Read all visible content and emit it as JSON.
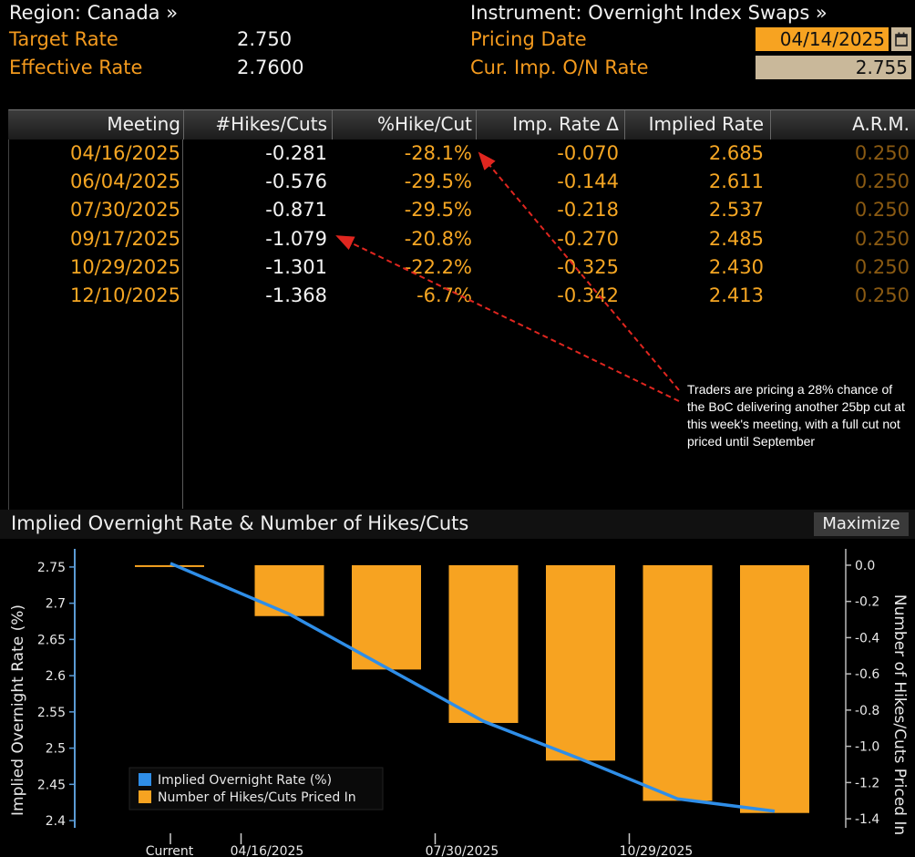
{
  "header": {
    "region_label": "Region: Canada »",
    "instrument_label": "Instrument: Overnight Index Swaps »",
    "target_rate_label": "Target Rate",
    "target_rate_value": "2.750",
    "effective_rate_label": "Effective Rate",
    "effective_rate_value": "2.7600",
    "pricing_date_label": "Pricing Date",
    "pricing_date_value": "04/14/2025",
    "calendar_icon": "calendar-icon",
    "cur_imp_label": "Cur. Imp. O/N Rate",
    "cur_imp_value": "2.755"
  },
  "table": {
    "headers": [
      "Meeting",
      "#Hikes/Cuts",
      "%Hike/Cut",
      "Imp. Rate Δ",
      "Implied Rate",
      "A.R.M."
    ],
    "rows": [
      {
        "meeting": "04/16/2025",
        "hikes": "-0.281",
        "pct": "-28.1%",
        "delta": "-0.070",
        "implied": "2.685",
        "arm": "0.250"
      },
      {
        "meeting": "06/04/2025",
        "hikes": "-0.576",
        "pct": "-29.5%",
        "delta": "-0.144",
        "implied": "2.611",
        "arm": "0.250"
      },
      {
        "meeting": "07/30/2025",
        "hikes": "-0.871",
        "pct": "-29.5%",
        "delta": "-0.218",
        "implied": "2.537",
        "arm": "0.250"
      },
      {
        "meeting": "09/17/2025",
        "hikes": "-1.079",
        "pct": "-20.8%",
        "delta": "-0.270",
        "implied": "2.485",
        "arm": "0.250"
      },
      {
        "meeting": "10/29/2025",
        "hikes": "-1.301",
        "pct": "-22.2%",
        "delta": "-0.325",
        "implied": "2.430",
        "arm": "0.250"
      },
      {
        "meeting": "12/10/2025",
        "hikes": "-1.368",
        "pct": "-6.7%",
        "delta": "-0.342",
        "implied": "2.413",
        "arm": "0.250"
      }
    ]
  },
  "annotation": {
    "text": "Traders are pricing a 28% chance of the BoC delivering another 25bp cut at this week's meeting, with a full cut not priced until September",
    "arrow_color": "#e0261f"
  },
  "chart": {
    "title": "Implied Overnight Rate & Number of Hikes/Cuts",
    "maximize_label": "Maximize"
  },
  "chart_data": {
    "type": "bar",
    "categories": [
      "Current",
      "04/16/2025",
      "06/04/2025",
      "07/30/2025",
      "09/17/2025",
      "10/29/2025",
      "12/10/2025"
    ],
    "x_tick_labels": [
      "Current",
      "04/16/2025",
      "07/30/2025",
      "10/29/2025"
    ],
    "series": [
      {
        "name": "Implied Overnight Rate (%)",
        "type": "line",
        "axis": "left",
        "color": "#2f8ee8",
        "values": [
          2.755,
          2.685,
          2.611,
          2.537,
          2.485,
          2.43,
          2.413
        ]
      },
      {
        "name": "Number of Hikes/Cuts Priced In",
        "type": "bar",
        "axis": "right",
        "color": "#f7a321",
        "values": [
          0,
          -0.281,
          -0.576,
          -0.871,
          -1.079,
          -1.301,
          -1.368
        ]
      }
    ],
    "ylabel_left": "Implied Overnight Rate (%)",
    "ylabel_right": "Number of Hikes/Cuts Priced In",
    "ylim_left": [
      2.39,
      2.765
    ],
    "ylim_right": [
      -1.45,
      0.05
    ],
    "yticks_left": [
      "2.75",
      "2.7",
      "2.65",
      "2.6",
      "2.55",
      "2.5",
      "2.45",
      "2.4"
    ],
    "yticks_right": [
      "0.0",
      "-0.2",
      "-0.4",
      "-0.6",
      "-0.8",
      "-1.0",
      "-1.2",
      "-1.4"
    ],
    "legend_placement": "bottom-left",
    "grid": false
  }
}
